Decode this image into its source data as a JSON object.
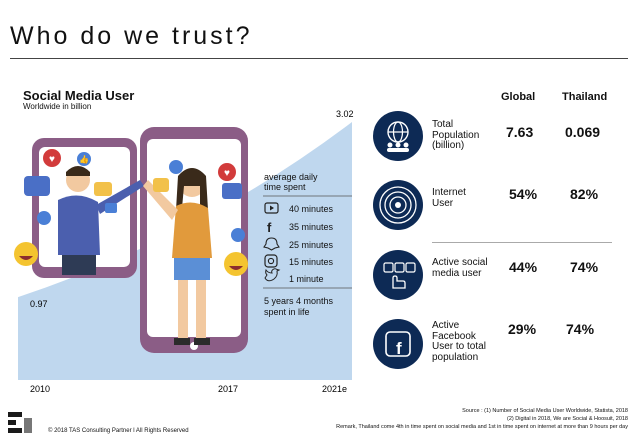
{
  "page": {
    "title": "Who do we trust?"
  },
  "chart_data": {
    "type": "area",
    "title": "Social Media User",
    "subtitle": "Worldwide in billion",
    "x": [
      "2010",
      "2017",
      "2021e"
    ],
    "values": [
      0.97,
      null,
      3.02
    ],
    "start_label": "0.97",
    "end_label": "3.02",
    "ylim": [
      0,
      3.02
    ]
  },
  "time_spent": {
    "title_line1": "average daily",
    "title_line2": "time spent",
    "items": [
      {
        "icon": "youtube-icon",
        "label": "40 minutes"
      },
      {
        "icon": "facebook-icon",
        "label": "35 minutes"
      },
      {
        "icon": "snapchat-icon",
        "label": "25 minutes"
      },
      {
        "icon": "instagram-icon",
        "label": "15 minutes"
      },
      {
        "icon": "twitter-icon",
        "label": "1 minute"
      }
    ],
    "summary_line1": "5 years 4 months",
    "summary_line2": "spent in life"
  },
  "table": {
    "col_global": "Global",
    "col_thailand": "Thailand",
    "rows": [
      {
        "icon": "population-globe-icon",
        "label1": "Total",
        "label2": "Population",
        "label3": "(billion)",
        "label4": "",
        "global": "7.63",
        "thailand": "0.069"
      },
      {
        "icon": "internet-signal-icon",
        "label1": "Internet",
        "label2": "User",
        "label3": "",
        "label4": "",
        "global": "54%",
        "thailand": "82%"
      },
      {
        "icon": "social-media-hand-icon",
        "label1": "Active social",
        "label2": "media user",
        "label3": "",
        "label4": "",
        "global": "44%",
        "thailand": "74%"
      },
      {
        "icon": "facebook-square-icon",
        "label1": "Active",
        "label2": "Facebook",
        "label3": "User to total",
        "label4": "population",
        "global": "29%",
        "thailand": "74%"
      }
    ]
  },
  "footer": {
    "source1": "Source : (1) Number of Social Media User Worldwide, Statista, 2018",
    "source2": "(2) Digital in 2018, We are Social & Hoosuit, 2018",
    "remark": "Remark, Thailand come 4th in time spent on social media and 1st in time spent on internet at more than 9 hours per day",
    "copyright": "© 2018 TAS Consulting Partner  l  All Rights Reserved"
  },
  "colors": {
    "area": "#bfd7ee",
    "phone": "#8b5d86",
    "navy": "#0d2a55"
  }
}
